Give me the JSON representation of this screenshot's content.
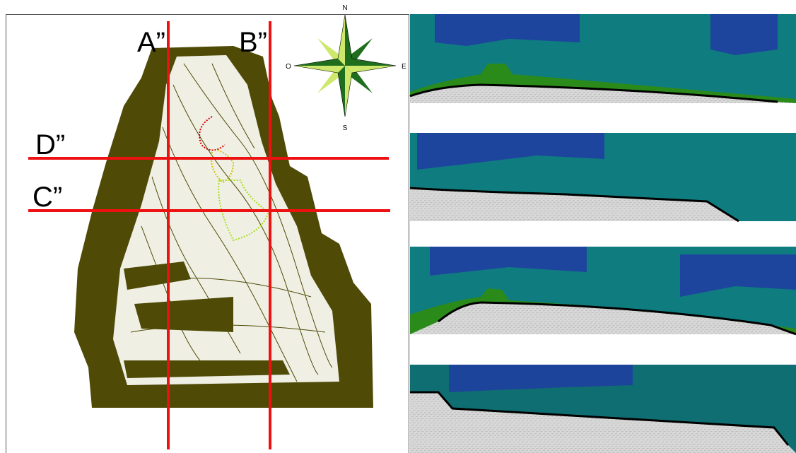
{
  "map": {
    "section_labels": [
      "A”",
      "B”",
      "D”",
      "C”"
    ]
  },
  "compass": {
    "north": "N",
    "east": "E",
    "south": "S",
    "west": "O"
  }
}
